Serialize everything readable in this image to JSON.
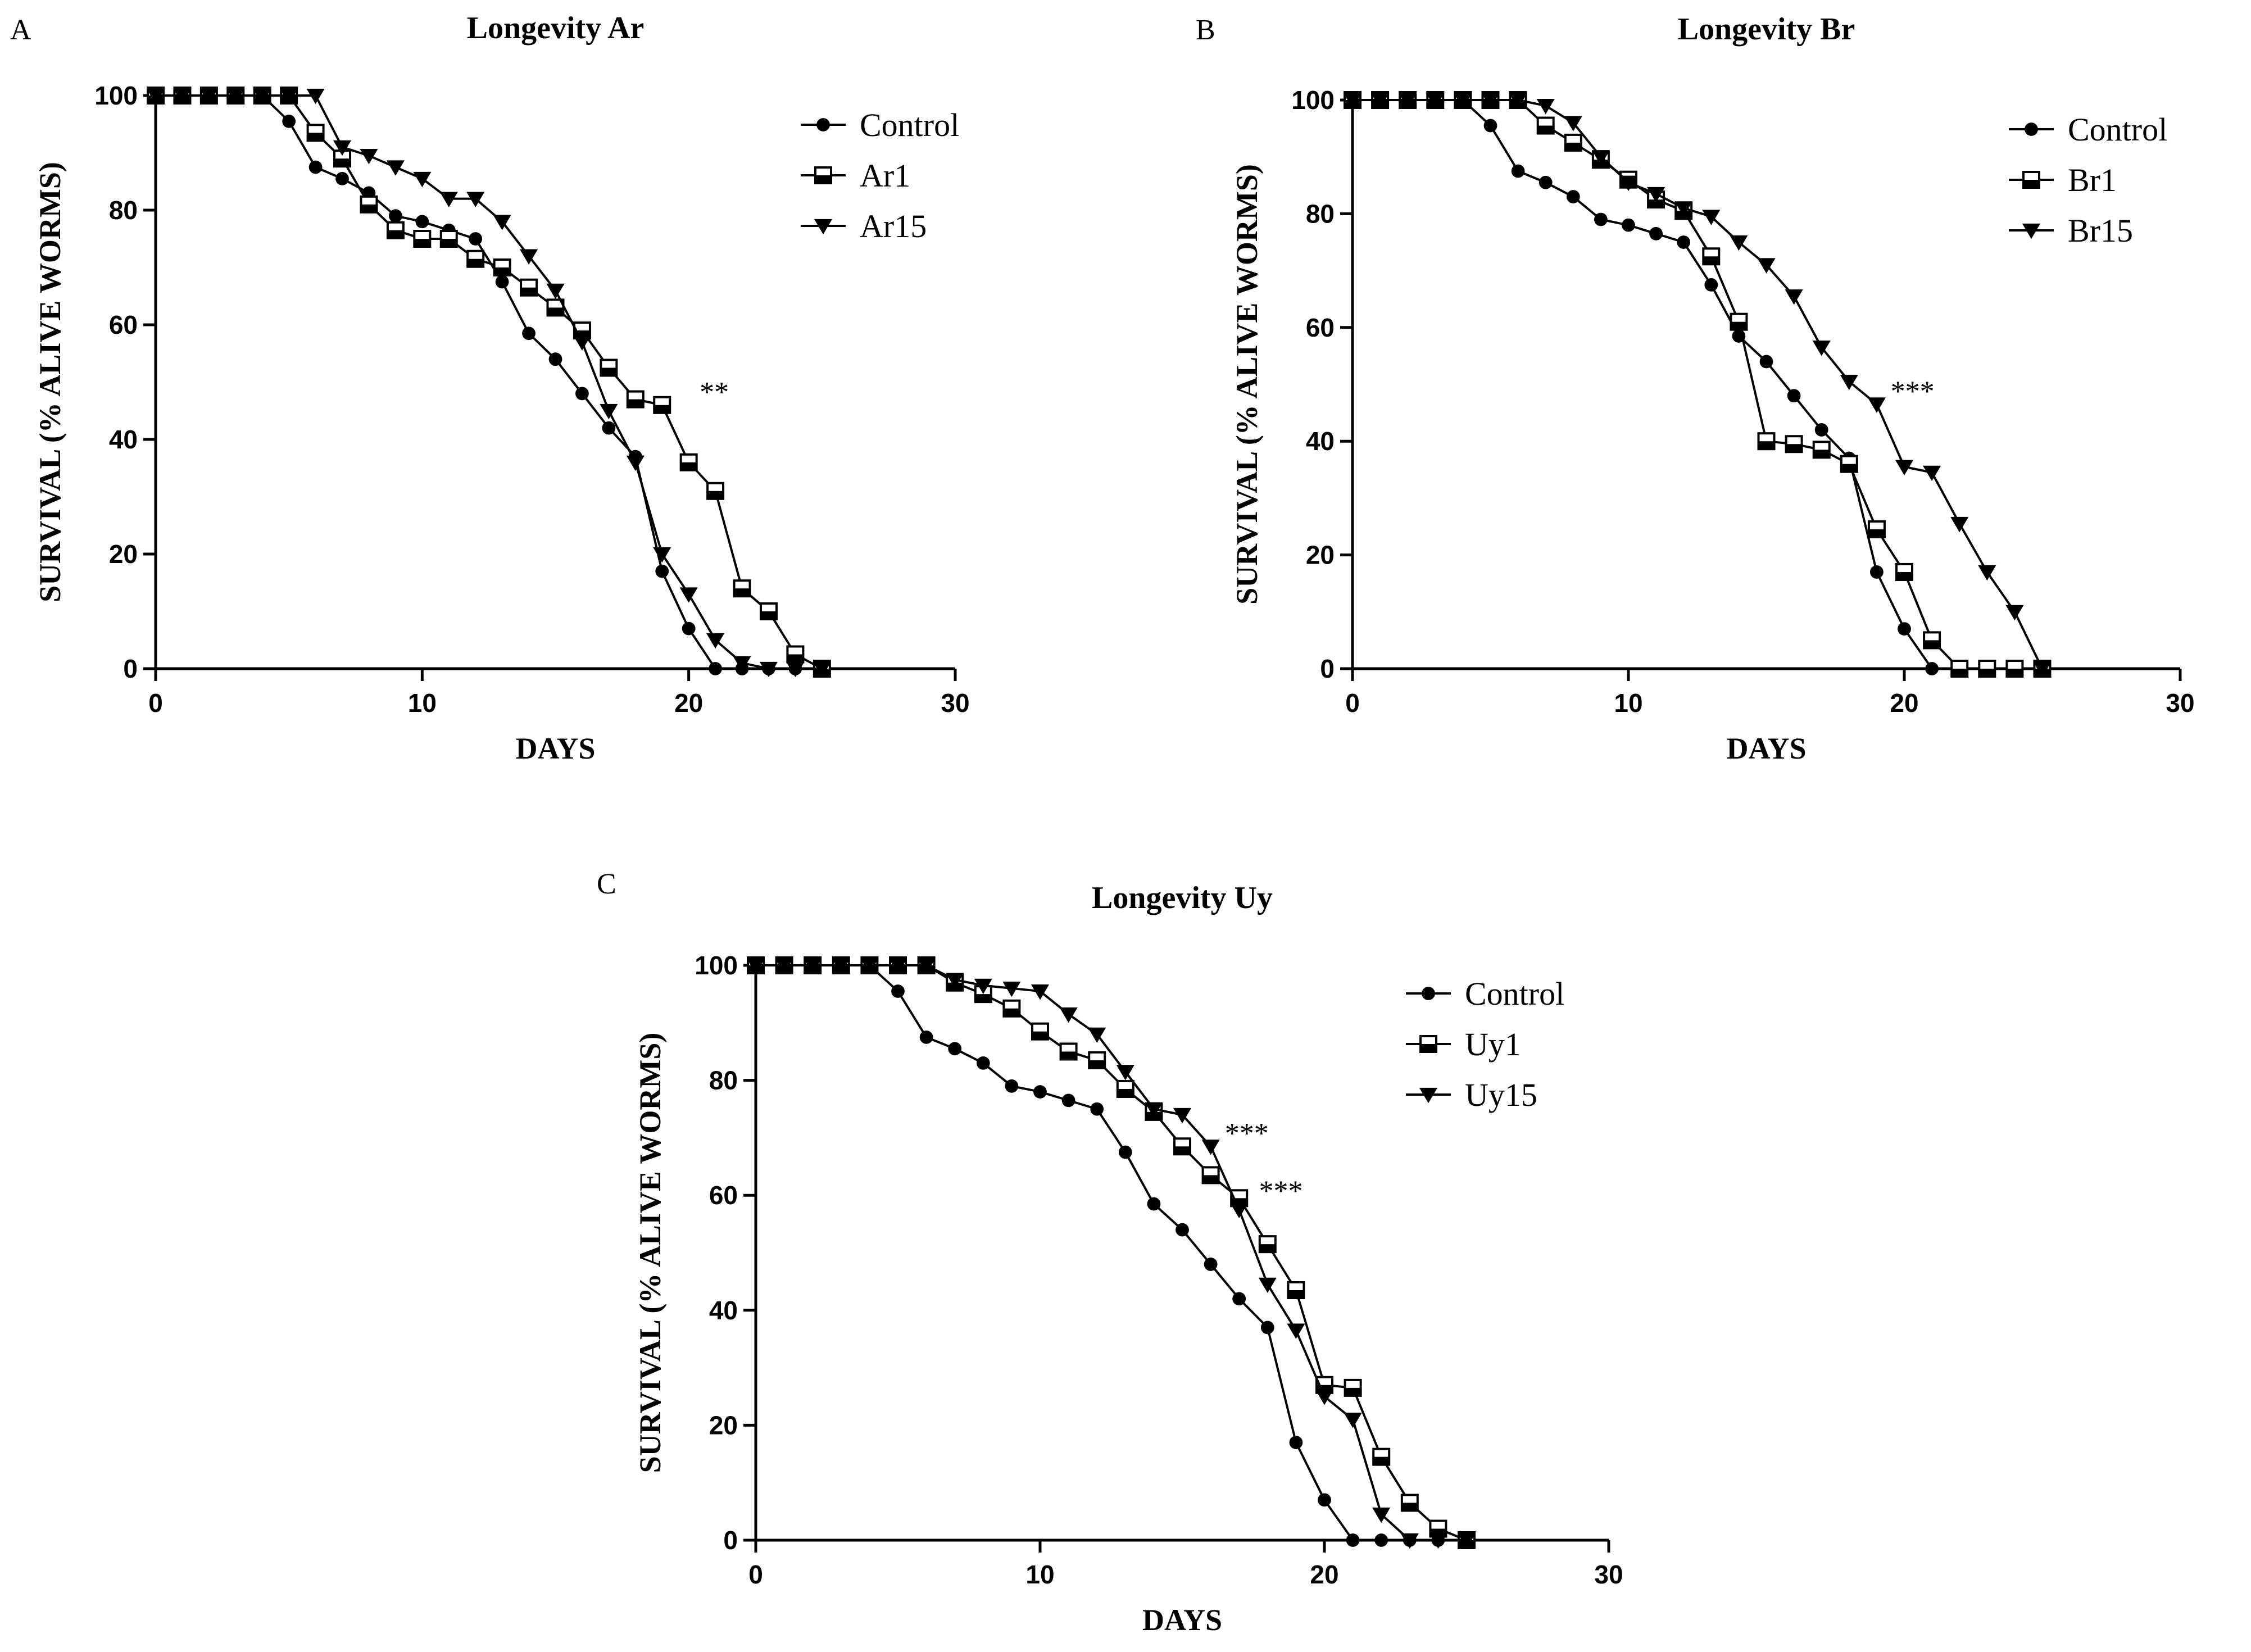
{
  "chart_data": [
    {
      "type": "line",
      "panel_label": "A",
      "title": "Longevity Ar",
      "xlabel": "DAYS",
      "ylabel": "SURVIVAL (% ALIVE WORMS)",
      "xlim": [
        0,
        30
      ],
      "ylim": [
        0,
        100
      ],
      "xticks": [
        0,
        10,
        20,
        30
      ],
      "yticks": [
        0,
        20,
        40,
        60,
        80,
        100
      ],
      "legend_position": "top-right",
      "grid": false,
      "series": [
        {
          "name": "Control",
          "marker": "circle",
          "x": [
            0,
            1,
            2,
            3,
            4,
            5,
            6,
            7,
            8,
            9,
            10,
            11,
            12,
            13,
            14,
            15,
            16,
            17,
            18,
            19,
            20,
            21,
            22,
            23,
            24,
            25
          ],
          "y": [
            100,
            100,
            100,
            100,
            100,
            95.5,
            87.5,
            85.5,
            83,
            79,
            78,
            76.5,
            75,
            67.5,
            58.5,
            54,
            48,
            42,
            37,
            17,
            7,
            0,
            0,
            0,
            0,
            0
          ]
        },
        {
          "name": "Ar1",
          "marker": "square",
          "x": [
            0,
            1,
            2,
            3,
            4,
            5,
            6,
            7,
            8,
            9,
            10,
            11,
            12,
            13,
            14,
            15,
            16,
            17,
            18,
            19,
            20,
            21,
            22,
            23,
            24,
            25
          ],
          "y": [
            100,
            100,
            100,
            100,
            100,
            100,
            93.5,
            89,
            81,
            76.5,
            75,
            75,
            71.5,
            70,
            66.5,
            63,
            59,
            52.5,
            47,
            46,
            36,
            31,
            14,
            10,
            2.5,
            0
          ]
        },
        {
          "name": "Ar15",
          "marker": "triangle-down",
          "x": [
            0,
            1,
            2,
            3,
            4,
            5,
            6,
            7,
            8,
            9,
            10,
            11,
            12,
            13,
            14,
            15,
            16,
            17,
            18,
            19,
            20,
            21,
            22,
            23,
            24,
            25
          ],
          "y": [
            100,
            100,
            100,
            100,
            100,
            100,
            100,
            91,
            89.5,
            87.5,
            85.5,
            82,
            82,
            78,
            72,
            66,
            57,
            45,
            36,
            20,
            13,
            5,
            1,
            0,
            0,
            0
          ]
        }
      ],
      "annotations": [
        {
          "text": "**",
          "x": 20.2,
          "y": 46
        }
      ]
    },
    {
      "type": "line",
      "panel_label": "B",
      "title": "Longevity Br",
      "xlabel": "DAYS",
      "ylabel": "SURVIVAL (% ALIVE WORMS)",
      "xlim": [
        0,
        30
      ],
      "ylim": [
        0,
        100
      ],
      "xticks": [
        0,
        10,
        20,
        30
      ],
      "yticks": [
        0,
        20,
        40,
        60,
        80,
        100
      ],
      "legend_position": "top-right",
      "grid": false,
      "series": [
        {
          "name": "Control",
          "marker": "circle",
          "x": [
            0,
            1,
            2,
            3,
            4,
            5,
            6,
            7,
            8,
            9,
            10,
            11,
            12,
            13,
            14,
            15,
            16,
            17,
            18,
            19,
            20,
            21,
            22,
            23,
            24,
            25
          ],
          "y": [
            100,
            100,
            100,
            100,
            100,
            95.5,
            87.5,
            85.5,
            83,
            79,
            78,
            76.5,
            75,
            67.5,
            58.5,
            54,
            48,
            42,
            37,
            17,
            7,
            0,
            0,
            0,
            0,
            0
          ]
        },
        {
          "name": "Br1",
          "marker": "square",
          "x": [
            0,
            1,
            2,
            3,
            4,
            5,
            6,
            7,
            8,
            9,
            10,
            11,
            12,
            13,
            14,
            15,
            16,
            17,
            18,
            19,
            20,
            21,
            22,
            23,
            24,
            25
          ],
          "y": [
            100,
            100,
            100,
            100,
            100,
            100,
            100,
            95.5,
            92.5,
            89.5,
            86,
            82.5,
            80.5,
            72.5,
            61,
            40,
            39.5,
            38.5,
            36,
            24.5,
            17,
            5,
            0,
            0,
            0,
            0
          ]
        },
        {
          "name": "Br15",
          "marker": "triangle-down",
          "x": [
            0,
            1,
            2,
            3,
            4,
            5,
            6,
            7,
            8,
            9,
            10,
            11,
            12,
            13,
            14,
            15,
            16,
            17,
            18,
            19,
            20,
            21,
            22,
            23,
            24,
            25
          ],
          "y": [
            100,
            100,
            100,
            100,
            100,
            100,
            100,
            99,
            96,
            90,
            85.5,
            83.5,
            81,
            79.5,
            75,
            71,
            65.5,
            56.5,
            50.5,
            46.5,
            35.5,
            34.5,
            25.5,
            17,
            10,
            0
          ]
        }
      ],
      "annotations": [
        {
          "text": "***",
          "x": 19.3,
          "y": 46.5
        }
      ]
    },
    {
      "type": "line",
      "panel_label": "C",
      "title": "Longevity Uy",
      "xlabel": "DAYS",
      "ylabel": "SURVIVAL (% ALIVE WORMS)",
      "xlim": [
        0,
        30
      ],
      "ylim": [
        0,
        100
      ],
      "xticks": [
        0,
        10,
        20,
        30
      ],
      "yticks": [
        0,
        20,
        40,
        60,
        80,
        100
      ],
      "legend_position": "top-right",
      "grid": false,
      "series": [
        {
          "name": "Control",
          "marker": "circle",
          "x": [
            0,
            1,
            2,
            3,
            4,
            5,
            6,
            7,
            8,
            9,
            10,
            11,
            12,
            13,
            14,
            15,
            16,
            17,
            18,
            19,
            20,
            21,
            22,
            23,
            24,
            25
          ],
          "y": [
            100,
            100,
            100,
            100,
            100,
            95.5,
            87.5,
            85.5,
            83,
            79,
            78,
            76.5,
            75,
            67.5,
            58.5,
            54,
            48,
            42,
            37,
            17,
            7,
            0,
            0,
            0,
            0,
            0
          ]
        },
        {
          "name": "Uy1",
          "marker": "square",
          "x": [
            0,
            1,
            2,
            3,
            4,
            5,
            6,
            7,
            8,
            9,
            10,
            11,
            12,
            13,
            14,
            15,
            16,
            17,
            18,
            19,
            20,
            21,
            22,
            23,
            24,
            25
          ],
          "y": [
            100,
            100,
            100,
            100,
            100,
            100,
            100,
            97,
            95,
            92.5,
            88.5,
            85,
            83.5,
            78.5,
            74.5,
            68.5,
            63.5,
            59.5,
            51.5,
            43.5,
            27,
            26.5,
            14.5,
            6.5,
            2,
            0
          ]
        },
        {
          "name": "Uy15",
          "marker": "triangle-down",
          "x": [
            0,
            1,
            2,
            3,
            4,
            5,
            6,
            7,
            8,
            9,
            10,
            11,
            12,
            13,
            14,
            15,
            16,
            17,
            18,
            19,
            20,
            21,
            22,
            23,
            24,
            25
          ],
          "y": [
            100,
            100,
            100,
            100,
            100,
            100,
            100,
            97.5,
            96.5,
            96,
            95.5,
            91.5,
            88,
            81.5,
            75,
            74,
            68.5,
            57.5,
            44.5,
            36.5,
            25,
            21,
            4.5,
            0,
            0,
            0
          ]
        }
      ],
      "annotations": [
        {
          "text": "***",
          "x": 16.3,
          "y": 68.5
        },
        {
          "text": "***",
          "x": 17.5,
          "y": 58.5
        }
      ]
    }
  ]
}
